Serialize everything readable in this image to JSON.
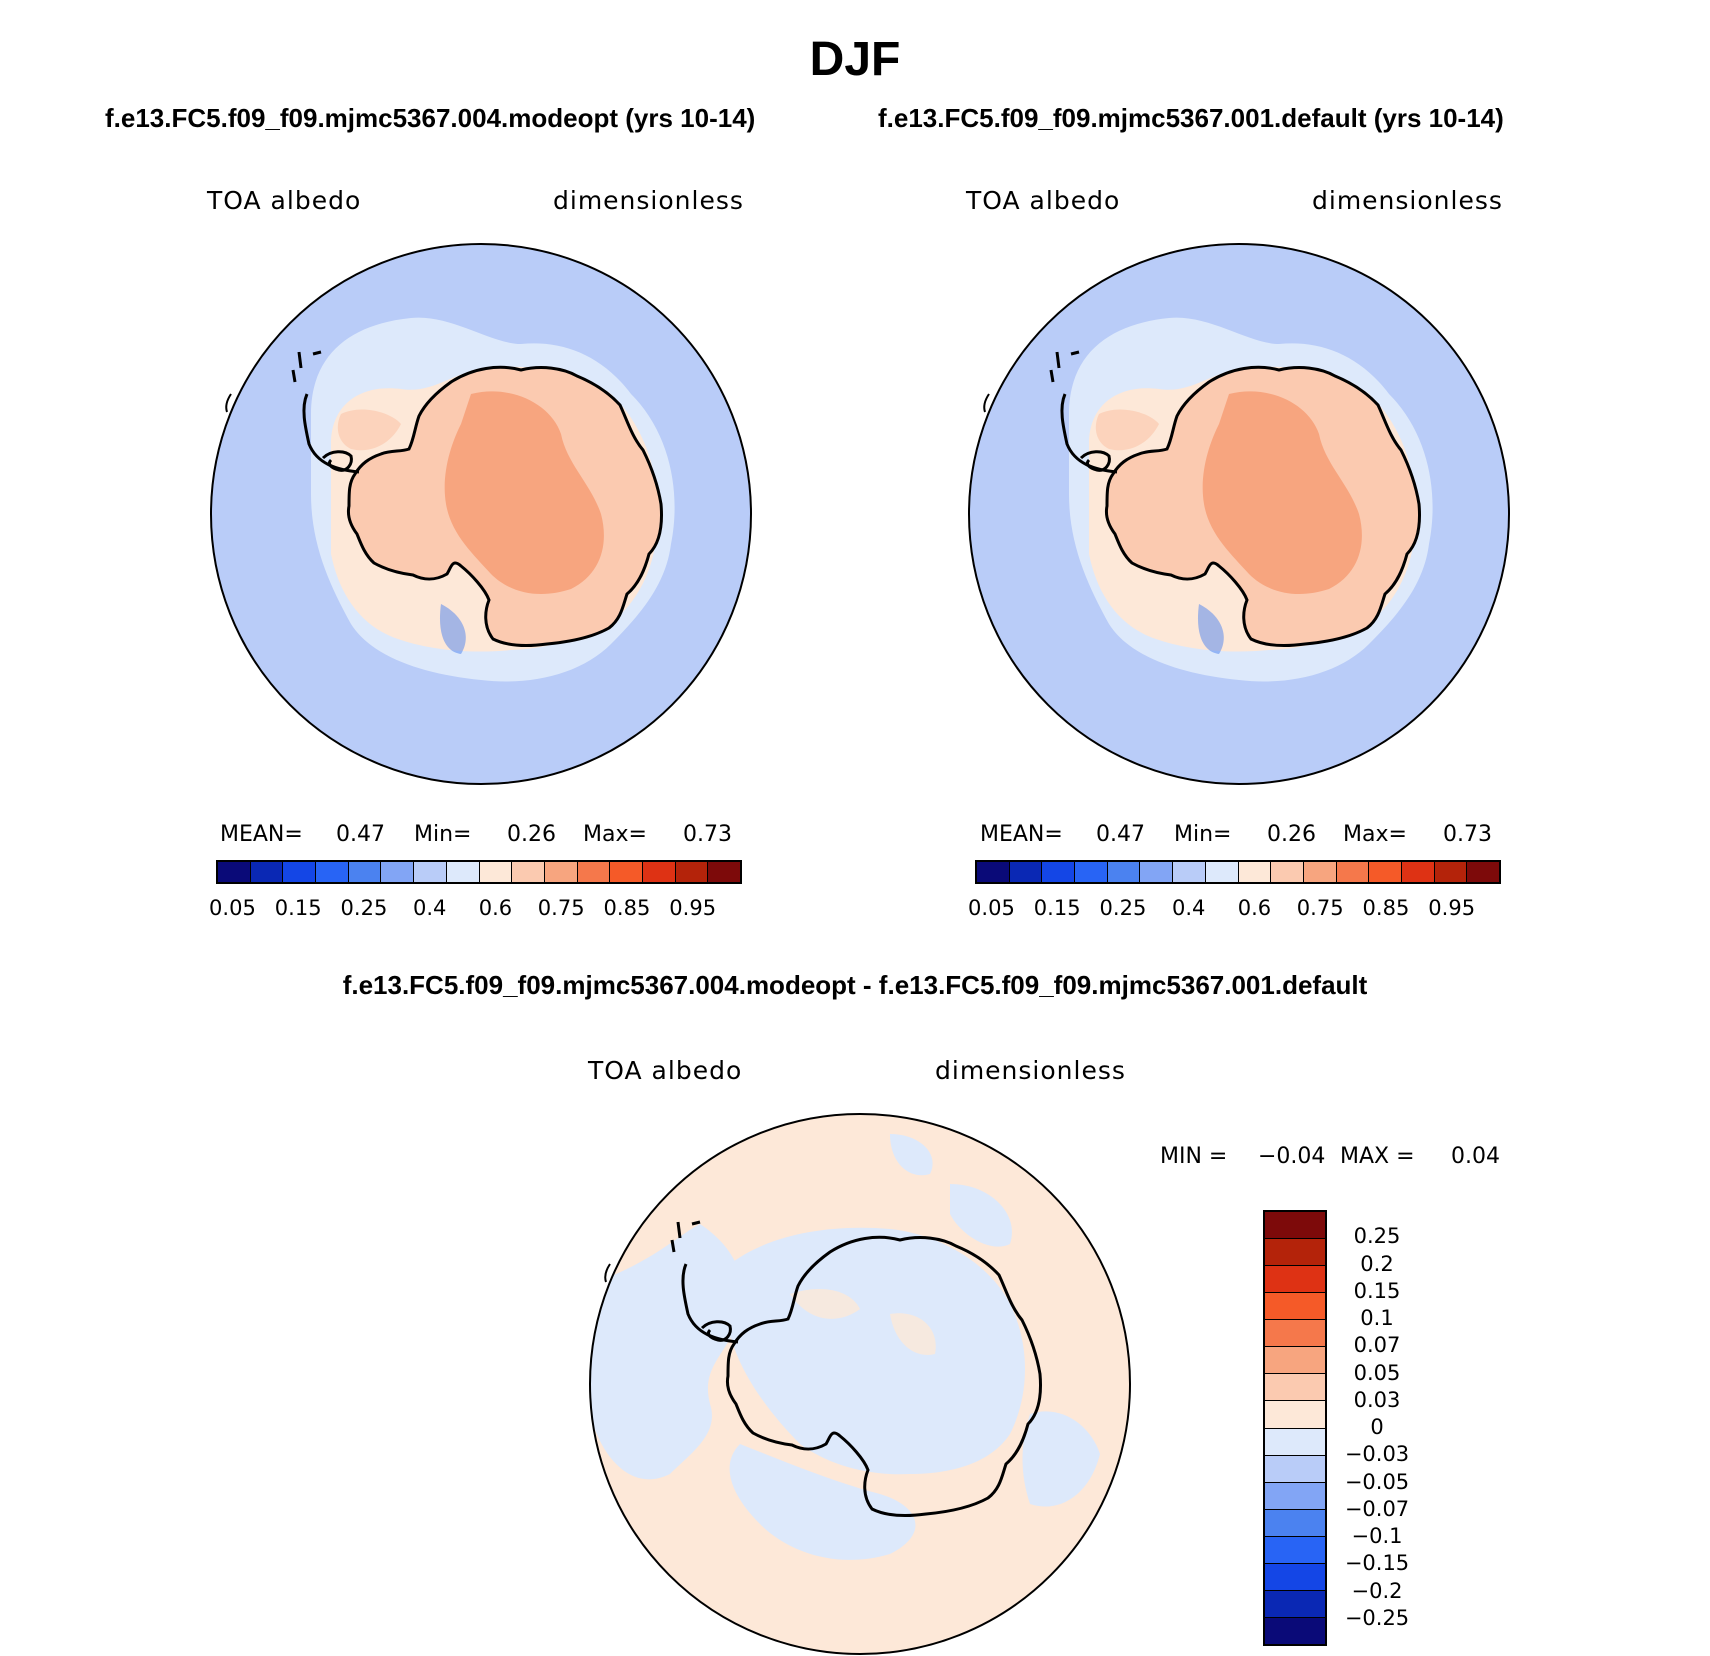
{
  "title": "DJF",
  "panel_left": {
    "case_title": "f.e13.FC5.f09_f09.mjmc5367.004.modeopt (yrs 10-14)",
    "left_label": "TOA albedo",
    "right_label": "dimensionless",
    "stats": {
      "mean_label": "MEAN=",
      "mean": "0.47",
      "min_label": "Min=",
      "min": "0.26",
      "max_label": "Max=",
      "max": "0.73"
    },
    "region": "Antarctica / Southern Ocean (south polar stereographic)"
  },
  "panel_right": {
    "case_title": "f.e13.FC5.f09_f09.mjmc5367.001.default (yrs 10-14)",
    "left_label": "TOA albedo",
    "right_label": "dimensionless",
    "stats": {
      "mean_label": "MEAN=",
      "mean": "0.47",
      "min_label": "Min=",
      "min": "0.26",
      "max_label": "Max=",
      "max": "0.73"
    },
    "region": "Antarctica / Southern Ocean (south polar stereographic)"
  },
  "colorbar_abs": {
    "colors": [
      "#0a0a78",
      "#0a28b4",
      "#1446e6",
      "#2864f5",
      "#4b82f0",
      "#82a5f5",
      "#b9ccf8",
      "#dde9fb",
      "#fde8d8",
      "#fbcab0",
      "#f7a57f",
      "#f5784b",
      "#f55a28",
      "#de3214",
      "#b4230a",
      "#7d0a0a"
    ],
    "labels": [
      "0.05",
      "0.15",
      "0.25",
      "0.4",
      "0.6",
      "0.75",
      "0.85",
      "0.95"
    ]
  },
  "panel_diff": {
    "case_title": "f.e13.FC5.f09_f09.mjmc5367.004.modeopt - f.e13.FC5.f09_f09.mjmc5367.001.default",
    "left_label": "TOA albedo",
    "right_label": "dimensionless",
    "stats": {
      "min_label": "MIN =",
      "min": "−0.04",
      "max_label": "MAX =",
      "max": "0.04"
    }
  },
  "colorbar_diff": {
    "colors": [
      "#7d0a0a",
      "#b4230a",
      "#de3214",
      "#f55a28",
      "#f5784b",
      "#f7a57f",
      "#fbcab0",
      "#fde8d8",
      "#dde9fb",
      "#b9ccf8",
      "#82a5f5",
      "#4b82f0",
      "#2864f5",
      "#1446e6",
      "#0a28b4",
      "#0a0a78"
    ],
    "labels": [
      "0.25",
      "0.2",
      "0.15",
      "0.1",
      "0.07",
      "0.05",
      "0.03",
      "0",
      "−0.03",
      "−0.05",
      "−0.07",
      "−0.1",
      "−0.15",
      "−0.2",
      "−0.25"
    ]
  }
}
